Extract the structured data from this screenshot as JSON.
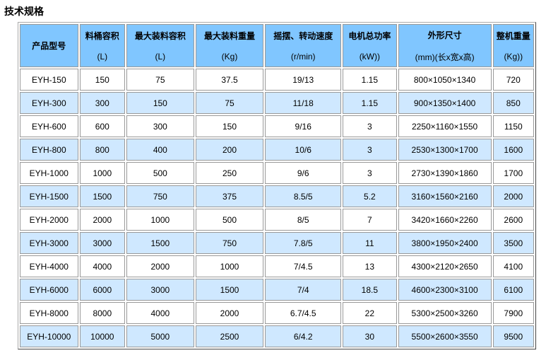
{
  "title": "技术规格",
  "headers": [
    {
      "cn": "产品型号",
      "unit": ""
    },
    {
      "cn": "料桶容积",
      "unit": "(L)"
    },
    {
      "cn": "最大装料容积",
      "unit": "(L)"
    },
    {
      "cn": "最大装料重量",
      "unit": "(Kg)"
    },
    {
      "cn": "摇摆、转动速度",
      "unit": "(r/min)"
    },
    {
      "cn": "电机总功率",
      "unit": "(kW))"
    },
    {
      "cn": "外形尺寸",
      "unit": "(mm)(长x宽x高)"
    },
    {
      "cn": "整机重量",
      "unit": "(Kg))"
    }
  ],
  "rows": [
    [
      "EYH-150",
      "150",
      "75",
      "37.5",
      "19/13",
      "1.15",
      "800×1050×1340",
      "720"
    ],
    [
      "EYH-300",
      "300",
      "150",
      "75",
      "11/18",
      "1.15",
      "900×1350×1400",
      "850"
    ],
    [
      "EYH-600",
      "600",
      "300",
      "150",
      "9/16",
      "3",
      "2250×1160×1550",
      "1150"
    ],
    [
      "EYH-800",
      "800",
      "400",
      "200",
      "10/6",
      "3",
      "2530×1300×1700",
      "1600"
    ],
    [
      "EYH-1000",
      "1000",
      "500",
      "250",
      "9/6",
      "3",
      "2730×1390×1860",
      "1700"
    ],
    [
      "EYH-1500",
      "1500",
      "750",
      "375",
      "8.5/5",
      "5.2",
      "3160×1560×2160",
      "2000"
    ],
    [
      "EYH-2000",
      "2000",
      "1000",
      "500",
      "8/5",
      "7",
      "3420×1660×2260",
      "2600"
    ],
    [
      "EYH-3000",
      "3000",
      "1500",
      "750",
      "7.8/5",
      "11",
      "3800×1950×2400",
      "3500"
    ],
    [
      "EYH-4000",
      "4000",
      "2000",
      "1000",
      "7/4.5",
      "13",
      "4300×2120×2650",
      "4100"
    ],
    [
      "EYH-6000",
      "6000",
      "3000",
      "1500",
      "7/4",
      "18.5",
      "4600×2300×3100",
      "6100"
    ],
    [
      "EYH-8000",
      "8000",
      "4000",
      "2000",
      "6.7/4.5",
      "22",
      "5300×2500×3260",
      "7900"
    ],
    [
      "EYH-10000",
      "10000",
      "5000",
      "2500",
      "6/4.2",
      "30",
      "5500×2600×3550",
      "9500"
    ]
  ]
}
